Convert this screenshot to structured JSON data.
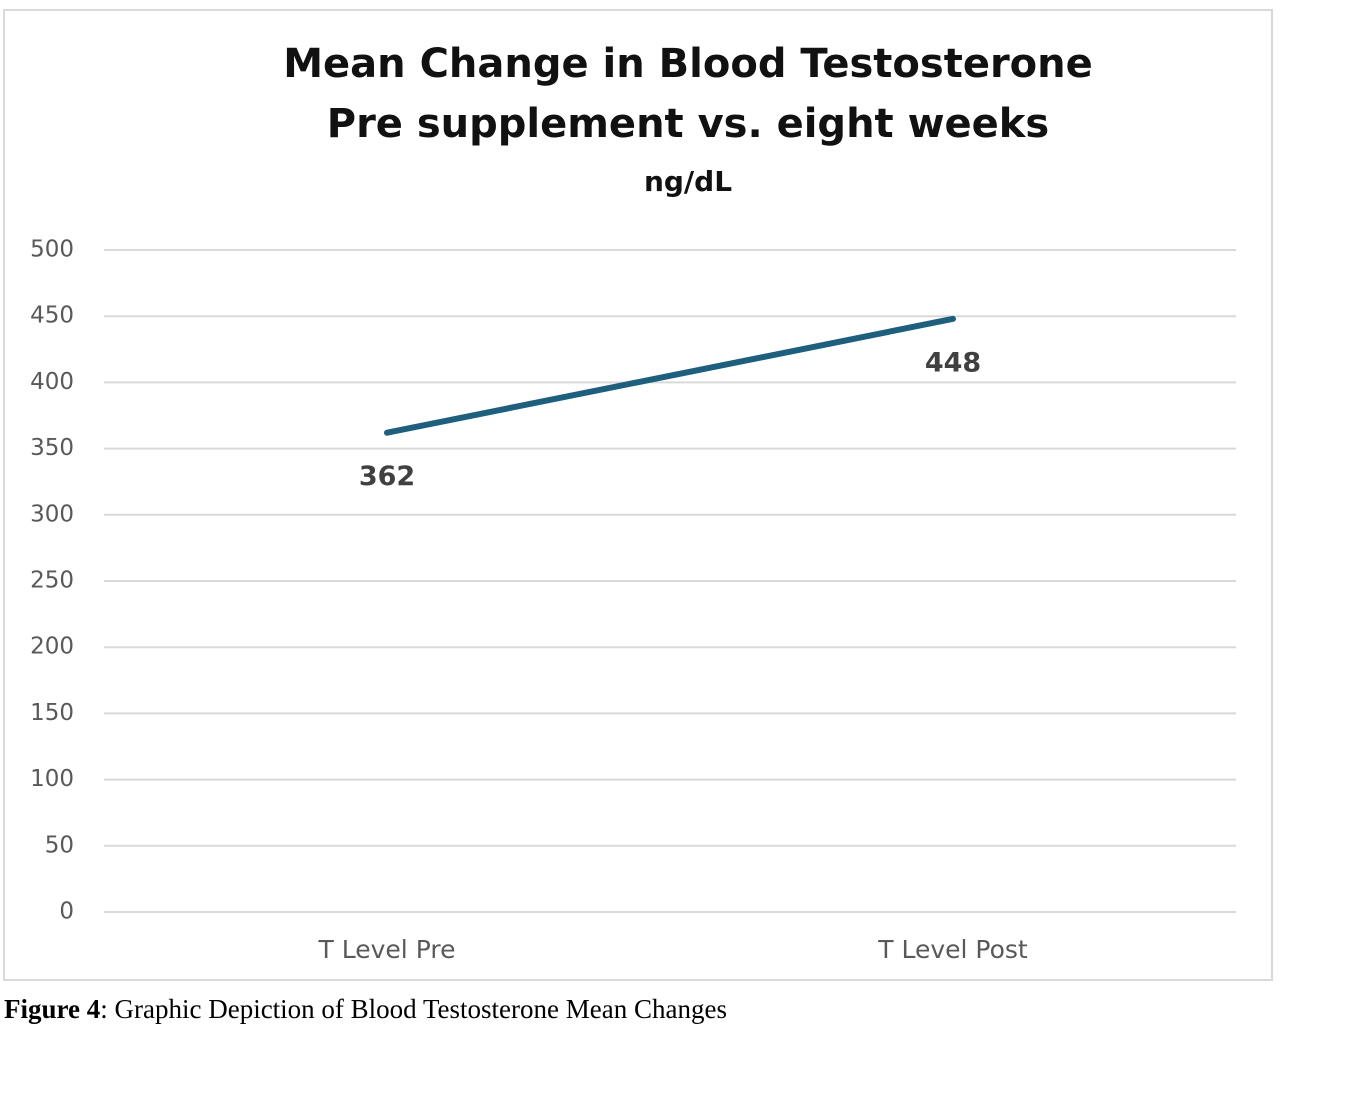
{
  "chart_data": {
    "type": "line",
    "title": "Mean Change in Blood Testosterone",
    "subtitle": "Pre supplement vs. eight weeks",
    "ylabel": "ng/dL",
    "categories": [
      "T Level Pre",
      "T Level Post"
    ],
    "series": [
      {
        "name": "T Level",
        "color": "#1f5f7e",
        "values": [
          362,
          448
        ]
      }
    ],
    "ylim": [
      0,
      500
    ],
    "yticks": [
      0,
      50,
      100,
      150,
      200,
      250,
      300,
      350,
      400,
      450,
      500
    ],
    "grid": true
  },
  "caption": {
    "label": "Figure 4",
    "text": ": Graphic Depiction of Blood Testosterone Mean Changes"
  }
}
